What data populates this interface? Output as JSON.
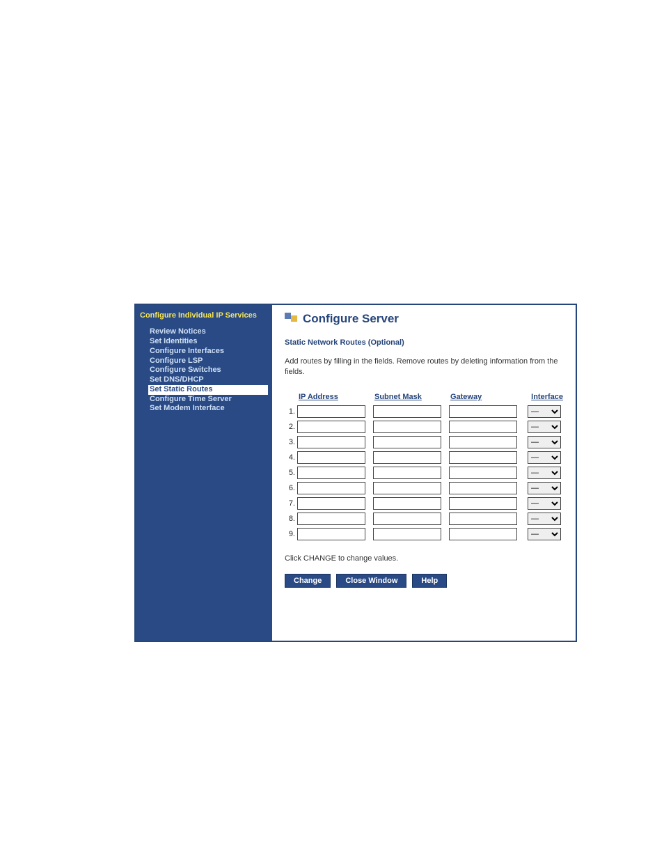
{
  "sidebar": {
    "header": "Configure Individual IP Services",
    "items": [
      {
        "label": "Review Notices",
        "active": false
      },
      {
        "label": "Set Identities",
        "active": false
      },
      {
        "label": "Configure Interfaces",
        "active": false
      },
      {
        "label": "Configure LSP",
        "active": false
      },
      {
        "label": "Configure Switches",
        "active": false
      },
      {
        "label": "Set DNS/DHCP",
        "active": false
      },
      {
        "label": "Set Static Routes",
        "active": true
      },
      {
        "label": "Configure Time Server",
        "active": false
      },
      {
        "label": "Set Modem Interface",
        "active": false
      }
    ]
  },
  "main": {
    "title": "Configure Server",
    "section_title": "Static Network Routes (Optional)",
    "instructions": "Add routes by filling in the fields. Remove routes by deleting information from the fields.",
    "columns": {
      "ip": "IP Address",
      "mask": "Subnet Mask",
      "gateway": "Gateway",
      "iface": "Interface"
    },
    "iface_placeholder": "—",
    "rows": [
      {
        "n": "1.",
        "ip": "",
        "mask": "",
        "gateway": "",
        "iface": "—"
      },
      {
        "n": "2.",
        "ip": "",
        "mask": "",
        "gateway": "",
        "iface": "—"
      },
      {
        "n": "3.",
        "ip": "",
        "mask": "",
        "gateway": "",
        "iface": "—"
      },
      {
        "n": "4.",
        "ip": "",
        "mask": "",
        "gateway": "",
        "iface": "—"
      },
      {
        "n": "5.",
        "ip": "",
        "mask": "",
        "gateway": "",
        "iface": "—"
      },
      {
        "n": "6.",
        "ip": "",
        "mask": "",
        "gateway": "",
        "iface": "—"
      },
      {
        "n": "7.",
        "ip": "",
        "mask": "",
        "gateway": "",
        "iface": "—"
      },
      {
        "n": "8.",
        "ip": "",
        "mask": "",
        "gateway": "",
        "iface": "—"
      },
      {
        "n": "9.",
        "ip": "",
        "mask": "",
        "gateway": "",
        "iface": "—"
      }
    ],
    "footnote": "Click CHANGE to change values.",
    "buttons": {
      "change": "Change",
      "close": "Close Window",
      "help": "Help"
    }
  },
  "colors": {
    "frame": "#26457a",
    "sidebar_bg": "#2a4a85",
    "sidebar_header": "#f5e65a",
    "sidebar_item": "#cfe0f5",
    "button_bg": "#2a4a85"
  }
}
